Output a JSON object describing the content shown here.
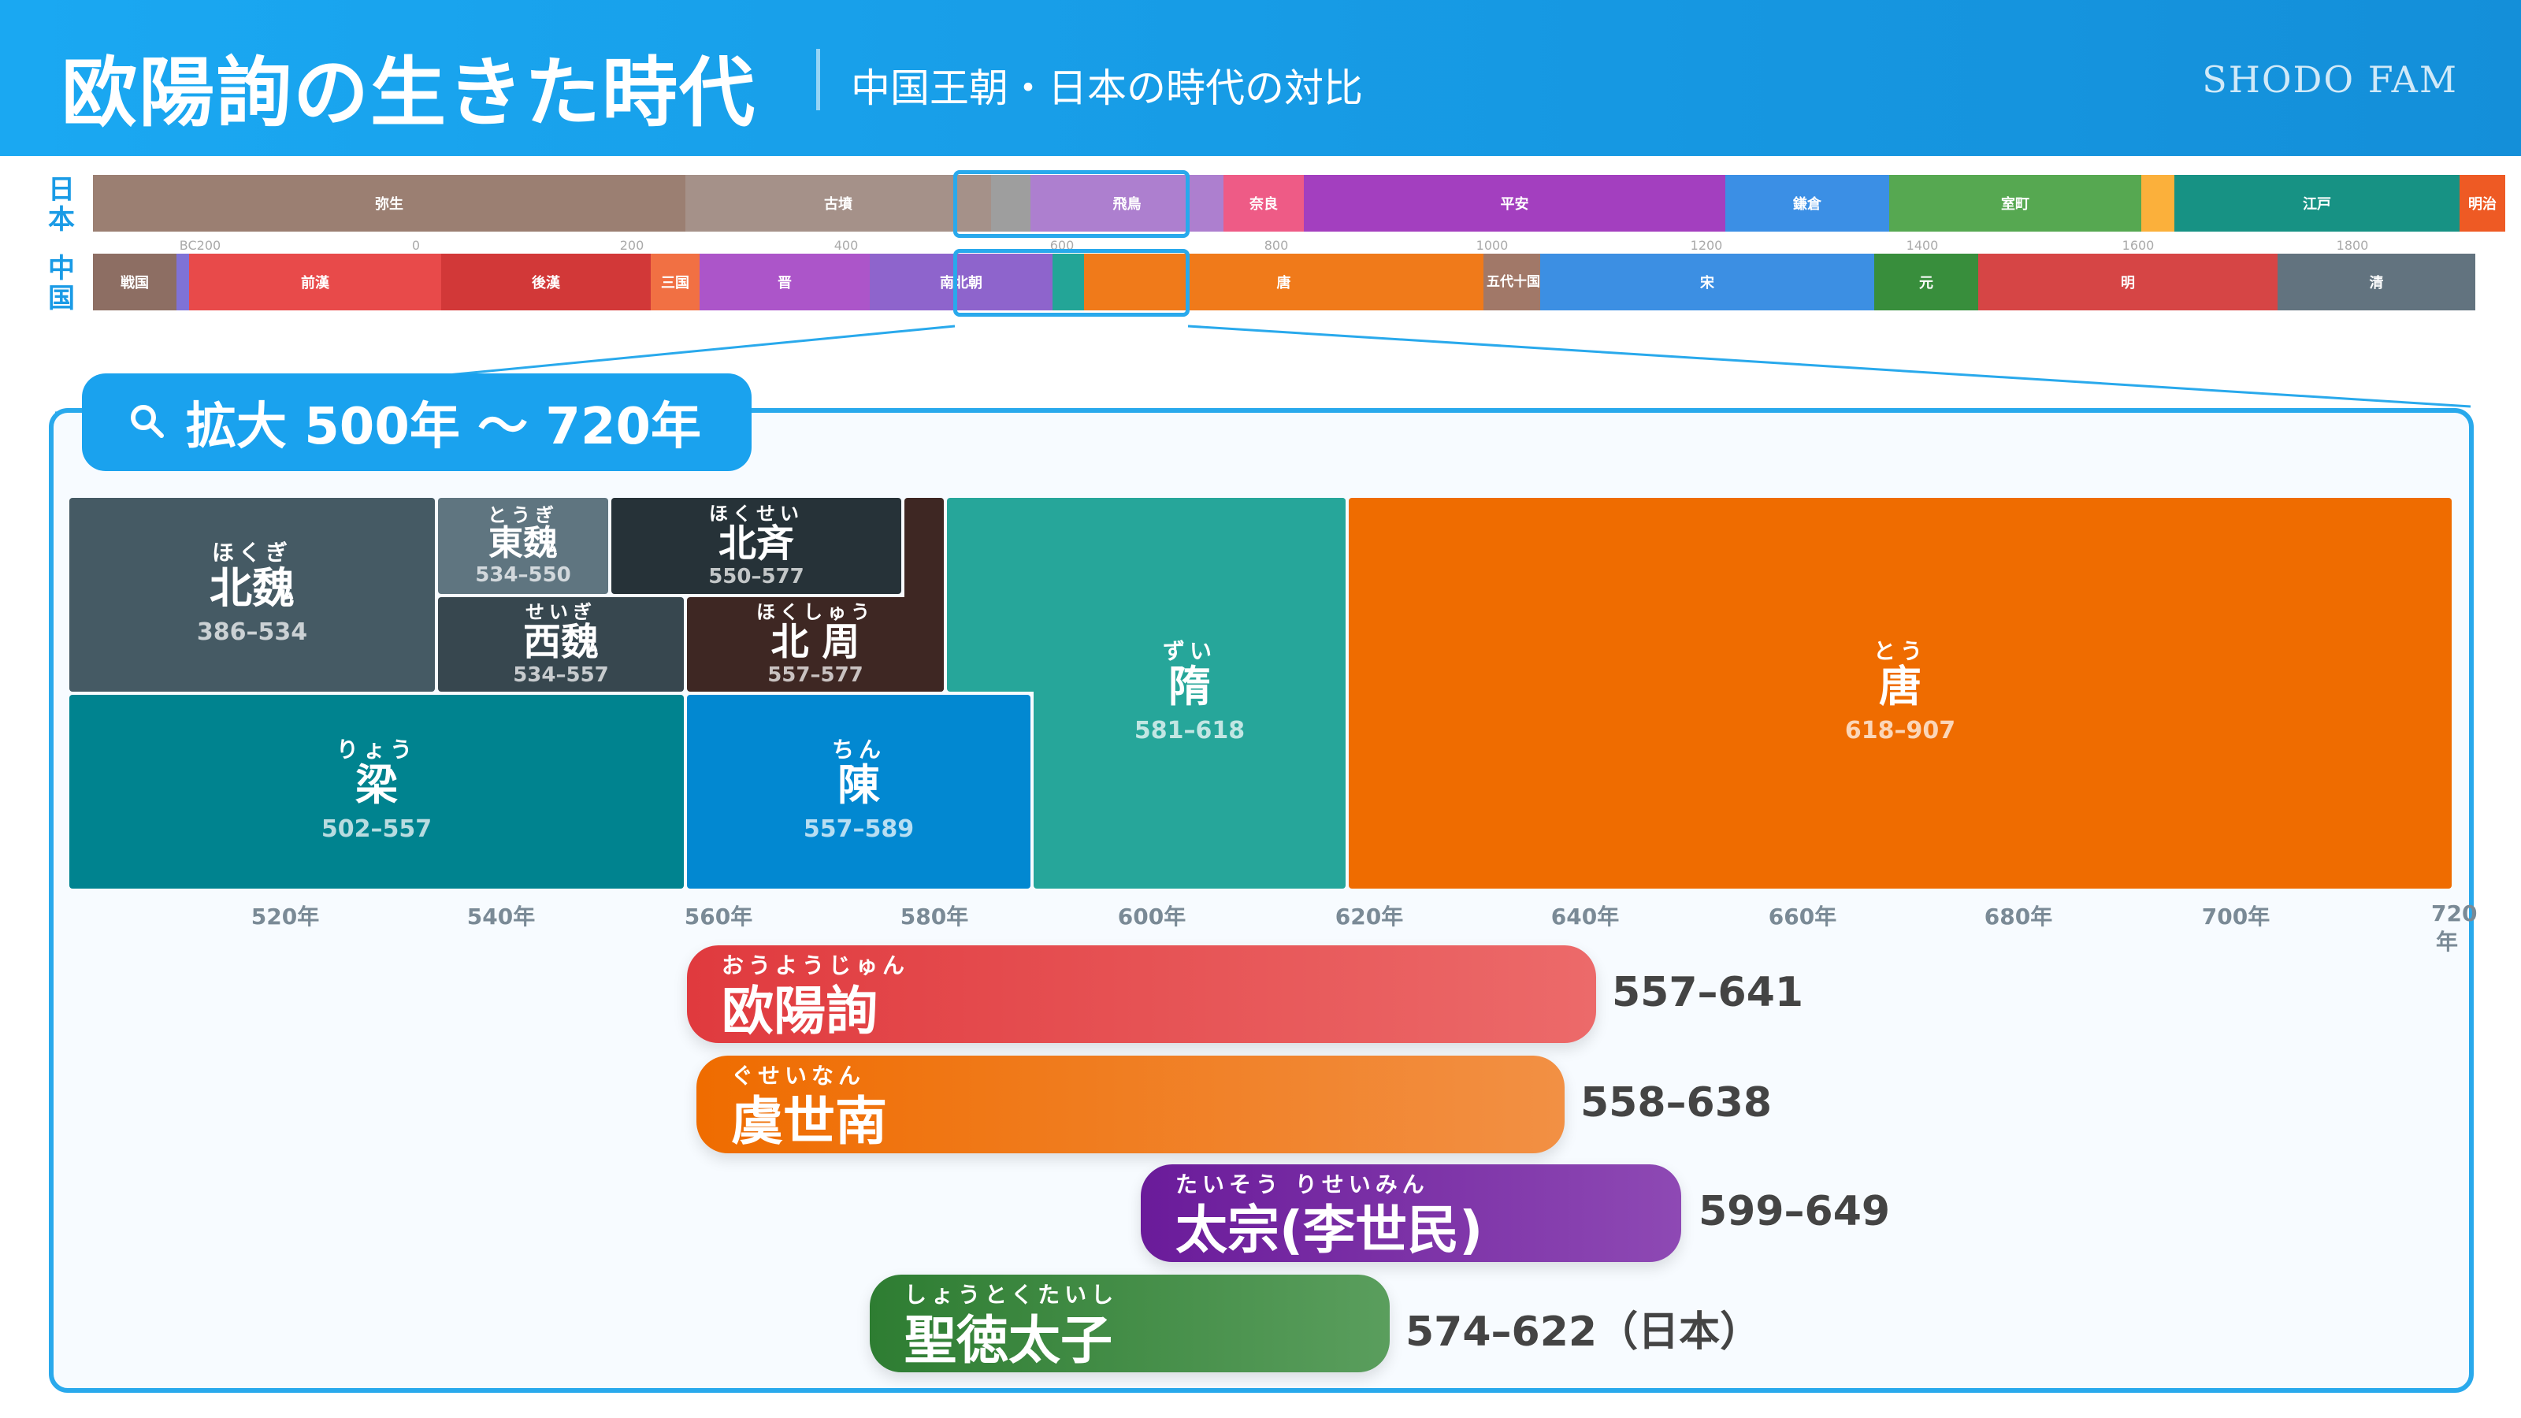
{
  "header": {
    "title": "欧陽詢の生きた時代",
    "subtitle": "中国王朝・日本の時代の対比",
    "brand": "SHODO FAM"
  },
  "overview": {
    "japan_label": "日本",
    "china_label": "中国",
    "japan": [
      "弥生",
      "古墳",
      "飛鳥",
      "奈良",
      "平安",
      "鎌倉",
      "室町",
      "江戸",
      "明治"
    ],
    "china": [
      "戦国",
      "前漢",
      "後漢",
      "三国",
      "晋",
      "南北朝",
      "唐",
      "五代十国",
      "宋",
      "元",
      "明",
      "清"
    ],
    "ticks": [
      "BC200",
      "0",
      "200",
      "400",
      "600",
      "800",
      "1000",
      "1200",
      "1400",
      "1600",
      "1800"
    ]
  },
  "zoom": {
    "label": "拡大 500年 〜 720年",
    "dynasties": {
      "beiwei": {
        "ruby": "ほくぎ",
        "name": "北魏",
        "years": "386–534"
      },
      "dongwei": {
        "ruby": "とうぎ",
        "name": "東魏",
        "years": "534–550"
      },
      "beiqi": {
        "ruby": "ほくせい",
        "name": "北斉",
        "years": "550–577"
      },
      "xiwei": {
        "ruby": "せいぎ",
        "name": "西魏",
        "years": "534–557"
      },
      "beizhou": {
        "ruby": "ほくしゅう",
        "name": "北 周",
        "years": "557–577"
      },
      "liang": {
        "ruby": "りょう",
        "name": "梁",
        "years": "502–557"
      },
      "chen": {
        "ruby": "ちん",
        "name": "陳",
        "years": "557–589"
      },
      "sui": {
        "ruby": "ずい",
        "name": "隋",
        "years": "581–618"
      },
      "tang": {
        "ruby": "とう",
        "name": "唐",
        "years": "618–907"
      }
    },
    "axis": [
      "520年",
      "540年",
      "560年",
      "580年",
      "600年",
      "620年",
      "640年",
      "660年",
      "680年",
      "700年",
      "720年"
    ]
  },
  "people": [
    {
      "ruby": "おうようじゅん",
      "name": "欧陽詢",
      "years": "557–641"
    },
    {
      "ruby": "ぐせいなん",
      "name": "虞世南",
      "years": "558–638"
    },
    {
      "ruby": "たいそう りせいみん",
      "name": "太宗(李世民)",
      "years": "599–649"
    },
    {
      "ruby": "しょうとくたいし",
      "name": "聖徳太子",
      "years": "574–622（日本）"
    }
  ]
}
